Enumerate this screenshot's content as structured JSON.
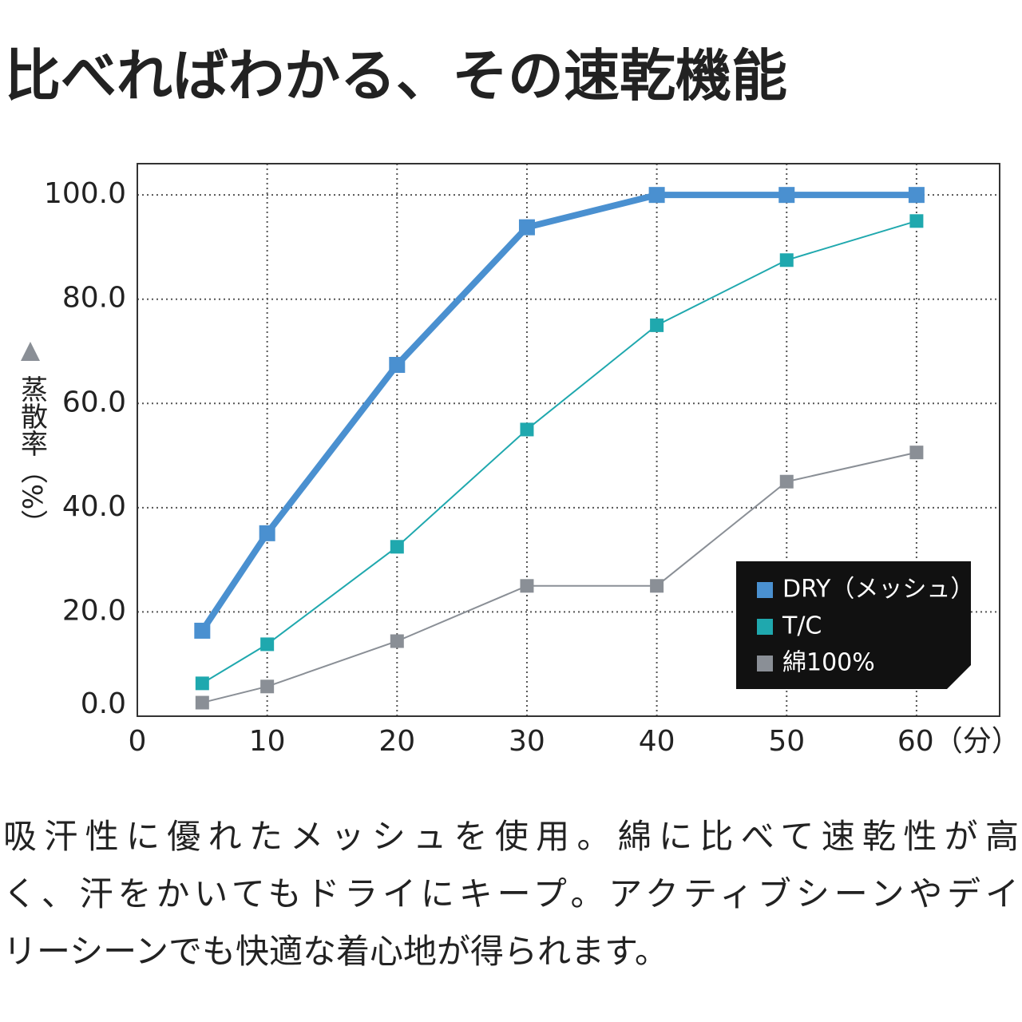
{
  "chart_data": {
    "type": "line",
    "title": "比べればわかる、その速乾機能",
    "y_label": "蒸散率（%）",
    "x": [
      5,
      10,
      20,
      30,
      40,
      50,
      60
    ],
    "series": [
      {
        "name": "DRY（メッシュ）",
        "color": "#4a90d0",
        "values": [
          16.4,
          35.1,
          67.4,
          93.8,
          100,
          100,
          100
        ]
      },
      {
        "name": "T/C",
        "color": "#1fa8ae",
        "values": [
          6.3,
          13.8,
          32.5,
          55,
          75,
          87.5,
          95
        ]
      },
      {
        "name": "綿100%",
        "color": "#8a8f96",
        "values": [
          2.6,
          5.7,
          14.4,
          25,
          25,
          45,
          50.6
        ]
      }
    ],
    "xlim": [
      0,
      66.4
    ],
    "xticks": [
      0,
      10,
      20,
      30,
      40,
      50,
      {
        "value": 60,
        "label": "60（分）"
      }
    ],
    "ylim": [
      0,
      106
    ],
    "yticks": [
      {
        "value": 0,
        "label": "0.0"
      },
      {
        "value": 20,
        "label": "20.0"
      },
      {
        "value": 40,
        "label": "40.0"
      },
      {
        "value": 60,
        "label": "60.0"
      },
      {
        "value": 80,
        "label": "80.0"
      },
      {
        "value": 100,
        "label": "100.0"
      }
    ],
    "grid": true,
    "legend": "lower right",
    "description": [
      "吸汗性に優れたメッシュを使用。綿に比べて速乾性が高",
      "く、汗をかいてもドライにキープ。アクティブシーンやデイ",
      "リーシーンでも快適な着心地が得られます。"
    ]
  }
}
